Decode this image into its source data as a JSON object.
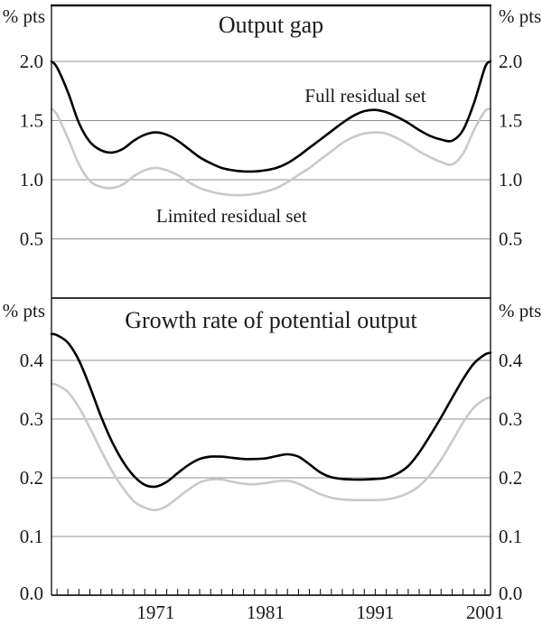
{
  "figure": {
    "x_axis": {
      "min": 1961.5,
      "max": 2001.5,
      "minor_tick_step_years": 1,
      "minor_ticks_from": 1962,
      "minor_ticks_to": 2001,
      "labeled_years": [
        "1971",
        "1981",
        "1991",
        "2001"
      ]
    },
    "colors": {
      "full_series": "#000000",
      "limited_series": "#c9c9c9",
      "gridline": "#8f8f8f",
      "frame": "#1a1a1a",
      "text": "#1a1a1a"
    }
  },
  "chart_data": [
    {
      "type": "line",
      "title": "Output gap",
      "ylabel_left": "% pts",
      "ylabel_right": "% pts",
      "ylim": [
        0,
        2.47
      ],
      "yticks": [
        "0.5",
        "1.0",
        "1.5",
        "2.0"
      ],
      "grid": true,
      "legend_position": "inline-annotations",
      "x": [
        1961.5,
        1962,
        1963,
        1964,
        1965,
        1966,
        1967,
        1968,
        1969,
        1970,
        1971,
        1972,
        1973,
        1974,
        1975,
        1976,
        1977,
        1978,
        1979,
        1980,
        1981,
        1982,
        1983,
        1984,
        1985,
        1986,
        1987,
        1988,
        1989,
        1990,
        1991,
        1992,
        1993,
        1994,
        1995,
        1996,
        1997,
        1998,
        1999,
        2000,
        2001,
        2001.5
      ],
      "series": [
        {
          "name": "Full residual set",
          "color_key": "full_series",
          "values": [
            2.0,
            1.95,
            1.74,
            1.48,
            1.32,
            1.25,
            1.23,
            1.26,
            1.33,
            1.38,
            1.4,
            1.38,
            1.33,
            1.26,
            1.19,
            1.14,
            1.1,
            1.08,
            1.07,
            1.07,
            1.08,
            1.1,
            1.14,
            1.2,
            1.27,
            1.34,
            1.41,
            1.48,
            1.54,
            1.58,
            1.59,
            1.57,
            1.53,
            1.48,
            1.42,
            1.37,
            1.34,
            1.33,
            1.42,
            1.65,
            1.95,
            2.0
          ]
        },
        {
          "name": "Limited residual set",
          "color_key": "limited_series",
          "values": [
            1.6,
            1.55,
            1.35,
            1.13,
            0.99,
            0.94,
            0.93,
            0.96,
            1.03,
            1.08,
            1.1,
            1.08,
            1.04,
            0.98,
            0.93,
            0.9,
            0.88,
            0.87,
            0.87,
            0.88,
            0.9,
            0.93,
            0.98,
            1.04,
            1.1,
            1.17,
            1.24,
            1.31,
            1.36,
            1.39,
            1.4,
            1.39,
            1.35,
            1.3,
            1.24,
            1.19,
            1.15,
            1.13,
            1.22,
            1.42,
            1.58,
            1.6
          ]
        }
      ],
      "annotations": [
        {
          "text": "Full residual set",
          "year": 1990.1,
          "value": 1.657
        },
        {
          "text": "Limited residual set",
          "year": 1977.9,
          "value": 0.641
        }
      ]
    },
    {
      "type": "line",
      "title": "Growth rate of potential output",
      "ylabel_left": "% pts",
      "ylabel_right": "% pts",
      "ylim": [
        0,
        0.506
      ],
      "yticks": [
        "0.0",
        "0.1",
        "0.2",
        "0.3",
        "0.4"
      ],
      "grid": true,
      "legend_position": "none",
      "x": [
        1961.5,
        1962,
        1963,
        1964,
        1965,
        1966,
        1967,
        1968,
        1969,
        1970,
        1971,
        1972,
        1973,
        1974,
        1975,
        1976,
        1977,
        1978,
        1979,
        1980,
        1981,
        1982,
        1983,
        1984,
        1985,
        1986,
        1987,
        1988,
        1989,
        1990,
        1991,
        1992,
        1993,
        1994,
        1995,
        1996,
        1997,
        1998,
        1999,
        2000,
        2001,
        2001.5
      ],
      "series": [
        {
          "name": "Full residual set",
          "color_key": "full_series",
          "values": [
            0.445,
            0.443,
            0.43,
            0.4,
            0.355,
            0.305,
            0.262,
            0.228,
            0.203,
            0.188,
            0.185,
            0.193,
            0.208,
            0.222,
            0.232,
            0.236,
            0.236,
            0.234,
            0.232,
            0.232,
            0.233,
            0.237,
            0.24,
            0.236,
            0.223,
            0.209,
            0.201,
            0.198,
            0.197,
            0.197,
            0.198,
            0.2,
            0.207,
            0.22,
            0.243,
            0.272,
            0.303,
            0.336,
            0.368,
            0.395,
            0.41,
            0.413
          ]
        },
        {
          "name": "Limited residual set",
          "color_key": "limited_series",
          "values": [
            0.36,
            0.358,
            0.346,
            0.32,
            0.285,
            0.247,
            0.212,
            0.183,
            0.16,
            0.149,
            0.145,
            0.152,
            0.166,
            0.18,
            0.192,
            0.197,
            0.197,
            0.193,
            0.19,
            0.189,
            0.191,
            0.194,
            0.195,
            0.19,
            0.181,
            0.172,
            0.166,
            0.163,
            0.162,
            0.162,
            0.162,
            0.163,
            0.167,
            0.174,
            0.186,
            0.205,
            0.231,
            0.262,
            0.294,
            0.32,
            0.334,
            0.337
          ]
        }
      ],
      "annotations": []
    }
  ]
}
